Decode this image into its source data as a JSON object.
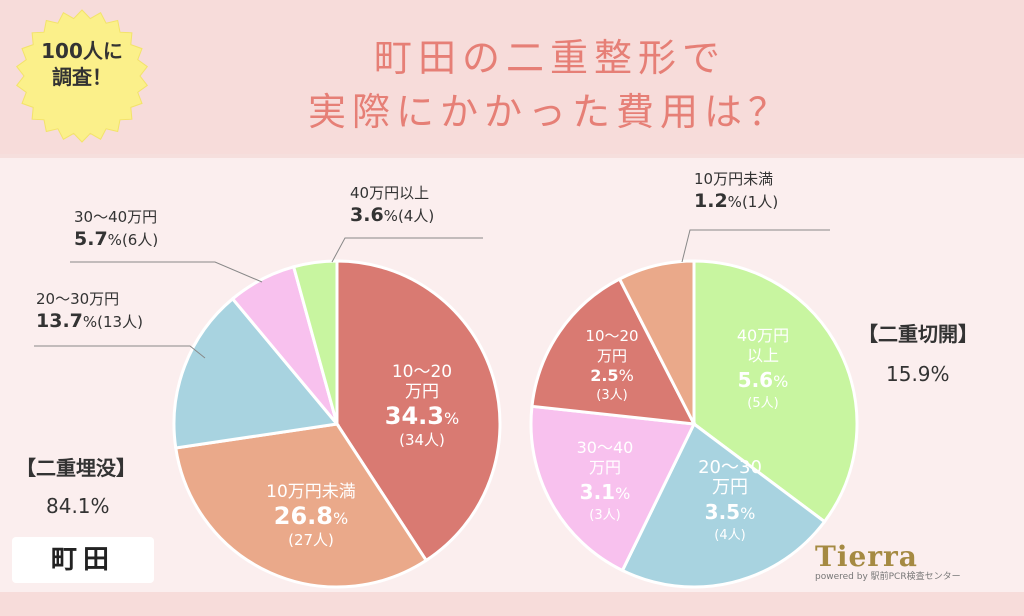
{
  "title": {
    "line1": "町田の二重整形で",
    "line2": "実際にかかった費用は？"
  },
  "badge": {
    "line1": "100人に",
    "line2": "調査！"
  },
  "city": "町田",
  "logo": {
    "name": "Tierra",
    "sub": "powered by 駅前PCR検査センター"
  },
  "colors": {
    "red": "#d97a72",
    "salmon": "#eaa98a",
    "blue": "#a8d3e0",
    "pink": "#f8c1ee",
    "green": "#c8f5a0",
    "title": "#e67f76"
  },
  "chart_data": [
    {
      "type": "pie",
      "title": "【二重埋没】",
      "total_pct": "84.1%",
      "slices": [
        {
          "key": "s1",
          "label": "10〜20万円",
          "line1": "10〜20",
          "line2": "万円",
          "pct_num": 34.3,
          "pct": "34.3",
          "unit": "%",
          "count": "(34人)",
          "color": "#d97a72"
        },
        {
          "key": "s2",
          "label": "10万円未満",
          "line1": "10万円未満",
          "line2": "",
          "pct_num": 26.8,
          "pct": "26.8",
          "unit": "%",
          "count": "(27人)",
          "color": "#eaa98a"
        },
        {
          "key": "s3",
          "label": "20〜30万円",
          "pct_num": 13.7,
          "pct": "13.7",
          "unit": "%",
          "count": "(13人)",
          "color": "#a8d3e0"
        },
        {
          "key": "s4",
          "label": "30〜40万円",
          "pct_num": 5.7,
          "pct": "5.7",
          "unit": "%",
          "count": "(6人)",
          "color": "#f8c1ee"
        },
        {
          "key": "s5",
          "label": "40万円以上",
          "pct_num": 3.6,
          "pct": "3.6",
          "unit": "%",
          "count": "(4人)",
          "color": "#c8f5a0"
        }
      ]
    },
    {
      "type": "pie",
      "title": "【二重切開】",
      "total_pct": "15.9%",
      "slices": [
        {
          "key": "s1",
          "label": "40万円以上",
          "line1": "40万円",
          "line2": "以上",
          "pct_num": 5.6,
          "pct": "5.6",
          "unit": "%",
          "count": "(5人)",
          "color": "#c8f5a0"
        },
        {
          "key": "s2",
          "label": "20〜30万円",
          "line1": "20〜30",
          "line2": "万円",
          "pct_num": 3.5,
          "pct": "3.5",
          "unit": "%",
          "count": "(4人)",
          "color": "#a8d3e0"
        },
        {
          "key": "s3",
          "label": "30〜40万円",
          "line1": "30〜40",
          "line2": "万円",
          "pct_num": 3.1,
          "pct": "3.1",
          "unit": "%",
          "count": "(3人)",
          "color": "#f8c1ee"
        },
        {
          "key": "s4",
          "label": "10〜20万円",
          "line1": "10〜20",
          "line2": "万円",
          "pct_num": 2.5,
          "pct": "2.5",
          "unit": "%",
          "count": "(3人)",
          "color": "#d97a72"
        },
        {
          "key": "s5",
          "label": "10万円未満",
          "pct_num": 1.2,
          "pct": "1.2",
          "unit": "%",
          "count": "(1人)",
          "color": "#eaa98a"
        }
      ]
    }
  ]
}
